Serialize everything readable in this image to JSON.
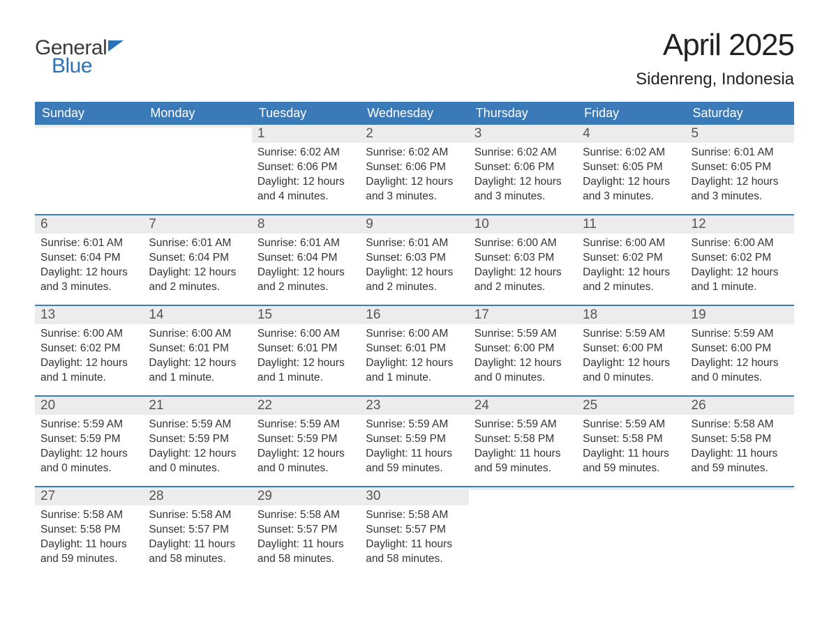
{
  "logo": {
    "text1": "General",
    "text2": "Blue"
  },
  "title": "April 2025",
  "location": "Sidenreng, Indonesia",
  "colors": {
    "header_bg": "#3b7ab8",
    "header_text": "#ffffff",
    "daynum_bg": "#ececec",
    "daynum_text": "#555555",
    "body_text": "#333333",
    "week_border": "#3b7ab8",
    "logo_dark": "#3b3b3b",
    "logo_blue": "#2a72b5",
    "page_bg": "#ffffff"
  },
  "weekdays": [
    "Sunday",
    "Monday",
    "Tuesday",
    "Wednesday",
    "Thursday",
    "Friday",
    "Saturday"
  ],
  "weeks": [
    [
      {
        "n": "",
        "sunrise": "",
        "sunset": "",
        "daylight": ""
      },
      {
        "n": "",
        "sunrise": "",
        "sunset": "",
        "daylight": ""
      },
      {
        "n": "1",
        "sunrise": "Sunrise: 6:02 AM",
        "sunset": "Sunset: 6:06 PM",
        "daylight": "Daylight: 12 hours and 4 minutes."
      },
      {
        "n": "2",
        "sunrise": "Sunrise: 6:02 AM",
        "sunset": "Sunset: 6:06 PM",
        "daylight": "Daylight: 12 hours and 3 minutes."
      },
      {
        "n": "3",
        "sunrise": "Sunrise: 6:02 AM",
        "sunset": "Sunset: 6:06 PM",
        "daylight": "Daylight: 12 hours and 3 minutes."
      },
      {
        "n": "4",
        "sunrise": "Sunrise: 6:02 AM",
        "sunset": "Sunset: 6:05 PM",
        "daylight": "Daylight: 12 hours and 3 minutes."
      },
      {
        "n": "5",
        "sunrise": "Sunrise: 6:01 AM",
        "sunset": "Sunset: 6:05 PM",
        "daylight": "Daylight: 12 hours and 3 minutes."
      }
    ],
    [
      {
        "n": "6",
        "sunrise": "Sunrise: 6:01 AM",
        "sunset": "Sunset: 6:04 PM",
        "daylight": "Daylight: 12 hours and 3 minutes."
      },
      {
        "n": "7",
        "sunrise": "Sunrise: 6:01 AM",
        "sunset": "Sunset: 6:04 PM",
        "daylight": "Daylight: 12 hours and 2 minutes."
      },
      {
        "n": "8",
        "sunrise": "Sunrise: 6:01 AM",
        "sunset": "Sunset: 6:04 PM",
        "daylight": "Daylight: 12 hours and 2 minutes."
      },
      {
        "n": "9",
        "sunrise": "Sunrise: 6:01 AM",
        "sunset": "Sunset: 6:03 PM",
        "daylight": "Daylight: 12 hours and 2 minutes."
      },
      {
        "n": "10",
        "sunrise": "Sunrise: 6:00 AM",
        "sunset": "Sunset: 6:03 PM",
        "daylight": "Daylight: 12 hours and 2 minutes."
      },
      {
        "n": "11",
        "sunrise": "Sunrise: 6:00 AM",
        "sunset": "Sunset: 6:02 PM",
        "daylight": "Daylight: 12 hours and 2 minutes."
      },
      {
        "n": "12",
        "sunrise": "Sunrise: 6:00 AM",
        "sunset": "Sunset: 6:02 PM",
        "daylight": "Daylight: 12 hours and 1 minute."
      }
    ],
    [
      {
        "n": "13",
        "sunrise": "Sunrise: 6:00 AM",
        "sunset": "Sunset: 6:02 PM",
        "daylight": "Daylight: 12 hours and 1 minute."
      },
      {
        "n": "14",
        "sunrise": "Sunrise: 6:00 AM",
        "sunset": "Sunset: 6:01 PM",
        "daylight": "Daylight: 12 hours and 1 minute."
      },
      {
        "n": "15",
        "sunrise": "Sunrise: 6:00 AM",
        "sunset": "Sunset: 6:01 PM",
        "daylight": "Daylight: 12 hours and 1 minute."
      },
      {
        "n": "16",
        "sunrise": "Sunrise: 6:00 AM",
        "sunset": "Sunset: 6:01 PM",
        "daylight": "Daylight: 12 hours and 1 minute."
      },
      {
        "n": "17",
        "sunrise": "Sunrise: 5:59 AM",
        "sunset": "Sunset: 6:00 PM",
        "daylight": "Daylight: 12 hours and 0 minutes."
      },
      {
        "n": "18",
        "sunrise": "Sunrise: 5:59 AM",
        "sunset": "Sunset: 6:00 PM",
        "daylight": "Daylight: 12 hours and 0 minutes."
      },
      {
        "n": "19",
        "sunrise": "Sunrise: 5:59 AM",
        "sunset": "Sunset: 6:00 PM",
        "daylight": "Daylight: 12 hours and 0 minutes."
      }
    ],
    [
      {
        "n": "20",
        "sunrise": "Sunrise: 5:59 AM",
        "sunset": "Sunset: 5:59 PM",
        "daylight": "Daylight: 12 hours and 0 minutes."
      },
      {
        "n": "21",
        "sunrise": "Sunrise: 5:59 AM",
        "sunset": "Sunset: 5:59 PM",
        "daylight": "Daylight: 12 hours and 0 minutes."
      },
      {
        "n": "22",
        "sunrise": "Sunrise: 5:59 AM",
        "sunset": "Sunset: 5:59 PM",
        "daylight": "Daylight: 12 hours and 0 minutes."
      },
      {
        "n": "23",
        "sunrise": "Sunrise: 5:59 AM",
        "sunset": "Sunset: 5:59 PM",
        "daylight": "Daylight: 11 hours and 59 minutes."
      },
      {
        "n": "24",
        "sunrise": "Sunrise: 5:59 AM",
        "sunset": "Sunset: 5:58 PM",
        "daylight": "Daylight: 11 hours and 59 minutes."
      },
      {
        "n": "25",
        "sunrise": "Sunrise: 5:59 AM",
        "sunset": "Sunset: 5:58 PM",
        "daylight": "Daylight: 11 hours and 59 minutes."
      },
      {
        "n": "26",
        "sunrise": "Sunrise: 5:58 AM",
        "sunset": "Sunset: 5:58 PM",
        "daylight": "Daylight: 11 hours and 59 minutes."
      }
    ],
    [
      {
        "n": "27",
        "sunrise": "Sunrise: 5:58 AM",
        "sunset": "Sunset: 5:58 PM",
        "daylight": "Daylight: 11 hours and 59 minutes."
      },
      {
        "n": "28",
        "sunrise": "Sunrise: 5:58 AM",
        "sunset": "Sunset: 5:57 PM",
        "daylight": "Daylight: 11 hours and 58 minutes."
      },
      {
        "n": "29",
        "sunrise": "Sunrise: 5:58 AM",
        "sunset": "Sunset: 5:57 PM",
        "daylight": "Daylight: 11 hours and 58 minutes."
      },
      {
        "n": "30",
        "sunrise": "Sunrise: 5:58 AM",
        "sunset": "Sunset: 5:57 PM",
        "daylight": "Daylight: 11 hours and 58 minutes."
      },
      {
        "n": "",
        "sunrise": "",
        "sunset": "",
        "daylight": ""
      },
      {
        "n": "",
        "sunrise": "",
        "sunset": "",
        "daylight": ""
      },
      {
        "n": "",
        "sunrise": "",
        "sunset": "",
        "daylight": ""
      }
    ]
  ]
}
